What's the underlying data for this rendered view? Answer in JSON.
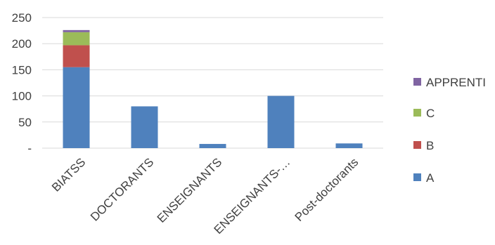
{
  "chart_data": {
    "type": "bar",
    "stacked": true,
    "categories": [
      "BIATSS",
      "DOCTORANTS",
      "ENSEIGNANTS",
      "ENSEIGNANTS-…",
      "Post-doctorants"
    ],
    "series": [
      {
        "name": "A",
        "color": "#4f81bd",
        "values": [
          155,
          80,
          8,
          100,
          9
        ]
      },
      {
        "name": "B",
        "color": "#c0504d",
        "values": [
          42,
          0,
          0,
          0,
          0
        ]
      },
      {
        "name": "C",
        "color": "#9bbb59",
        "values": [
          25,
          0,
          0,
          0,
          0
        ]
      },
      {
        "name": "APPRENTI",
        "color": "#8064a2",
        "values": [
          4,
          0,
          0,
          0,
          0
        ]
      }
    ],
    "yticks": [
      {
        "value": 0,
        "label": "-"
      },
      {
        "value": 50,
        "label": "50"
      },
      {
        "value": 100,
        "label": "100"
      },
      {
        "value": 150,
        "label": "150"
      },
      {
        "value": 200,
        "label": "200"
      },
      {
        "value": 250,
        "label": "250"
      }
    ],
    "ylim": [
      0,
      250
    ],
    "grid": true,
    "legend": {
      "position": "right",
      "order": [
        "APPRENTI",
        "C",
        "B",
        "A"
      ]
    },
    "title": "",
    "xlabel": "",
    "ylabel": ""
  }
}
